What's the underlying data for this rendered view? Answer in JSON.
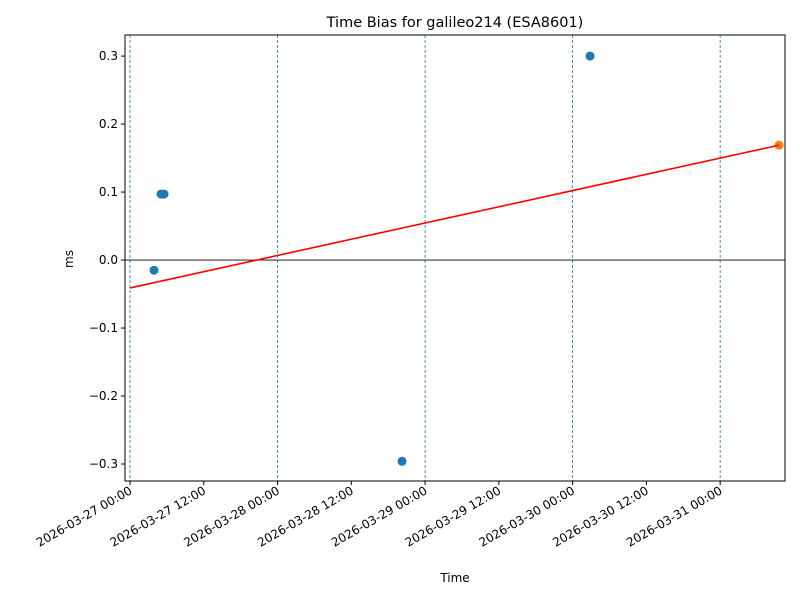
{
  "chart_data": {
    "type": "scatter",
    "title": "Time Bias for galileo214 (ESA8601)",
    "xlabel": "Time",
    "ylabel": "ms",
    "xlim": [
      "2026-03-26T23:11",
      "2026-03-31T10:33"
    ],
    "ylim": [
      -0.325,
      0.331
    ],
    "grid": "vertical dashed at x ticks",
    "x_ticks": [
      "2026-03-27 00:00",
      "2026-03-27 12:00",
      "2026-03-28 00:00",
      "2026-03-28 12:00",
      "2026-03-29 00:00",
      "2026-03-29 12:00",
      "2026-03-30 00:00",
      "2026-03-30 12:00",
      "2026-03-31 00:00"
    ],
    "y_ticks": [
      "−0.3",
      "−0.2",
      "−0.1",
      "0.0",
      "0.1",
      "0.2",
      "0.3"
    ],
    "y_tick_values": [
      -0.3,
      -0.2,
      -0.1,
      0.0,
      0.1,
      0.2,
      0.3
    ],
    "series": [
      {
        "kind": "scatter",
        "color": "#1f77b4",
        "points": [
          {
            "x": "2026-03-27T03:54",
            "y": -0.015
          },
          {
            "x": "2026-03-27T05:03",
            "y": 0.097
          },
          {
            "x": "2026-03-27T05:32",
            "y": 0.097
          },
          {
            "x": "2026-03-28T20:15",
            "y": -0.296
          },
          {
            "x": "2026-03-30T02:50",
            "y": 0.3
          }
        ]
      },
      {
        "kind": "scatter",
        "color": "#ff7f0e",
        "points": [
          {
            "x": "2026-03-31T09:36",
            "y": 0.169
          }
        ]
      },
      {
        "kind": "line",
        "color": "#ff0000",
        "points": [
          {
            "x": "2026-03-27T00:00",
            "y": -0.041
          },
          {
            "x": "2026-03-31T09:36",
            "y": 0.169
          }
        ]
      }
    ],
    "hline": {
      "y": 0.0,
      "color": "#000000"
    },
    "vline_color": "#1f77b4"
  }
}
